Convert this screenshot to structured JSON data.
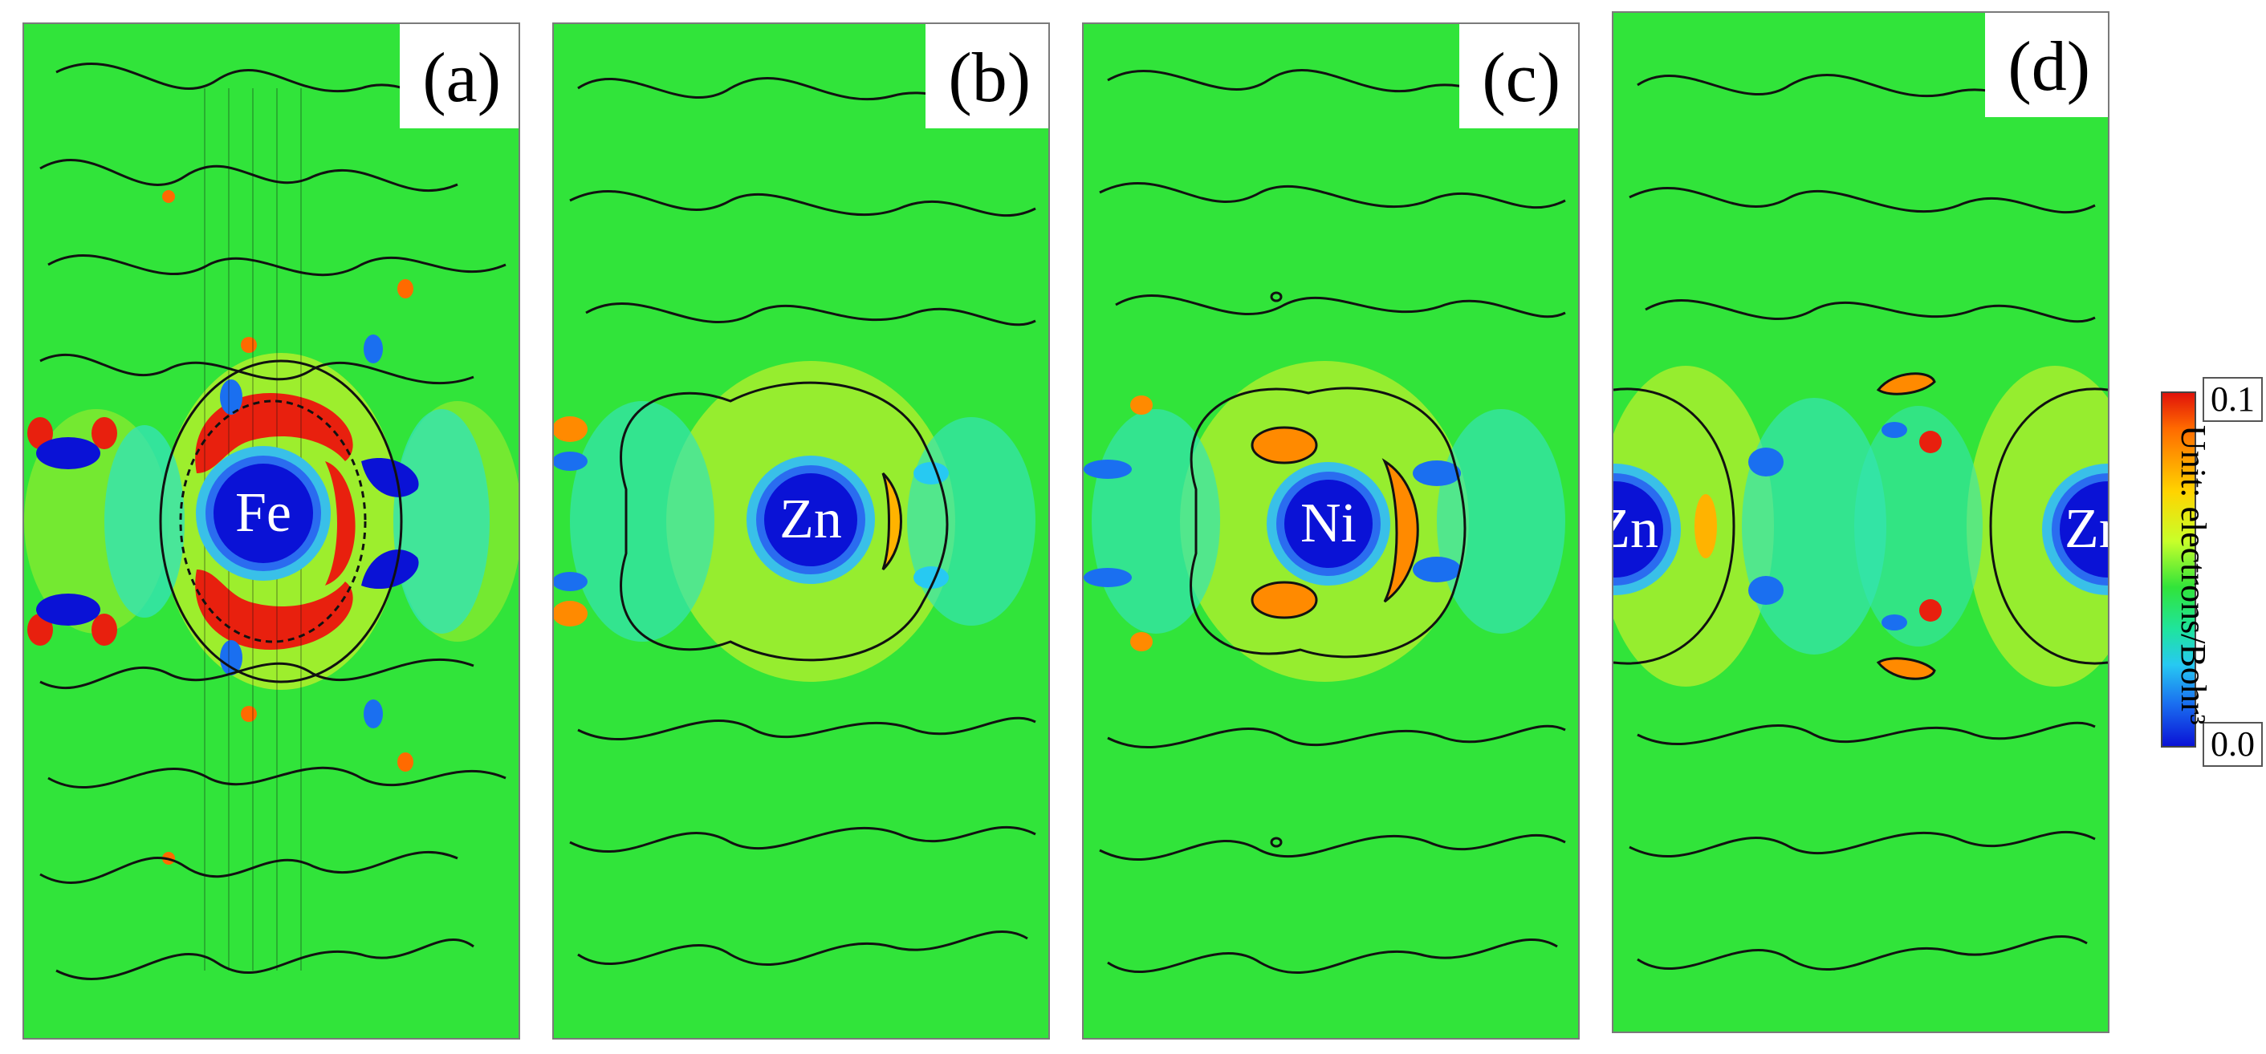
{
  "panels": [
    {
      "tag": "(a)",
      "atoms": [
        "Fe"
      ]
    },
    {
      "tag": "(b)",
      "atoms": [
        "Zn"
      ]
    },
    {
      "tag": "(c)",
      "atoms": [
        "Ni"
      ]
    },
    {
      "tag": "(d)",
      "atoms": [
        "Zn",
        "Zn"
      ]
    }
  ],
  "colorbar": {
    "max_label": "0.1",
    "min_label": "0.0",
    "title": "Unit: electrons/Bohr³",
    "colors": [
      "#e0120a",
      "#ff6a00",
      "#ffd400",
      "#31e43a",
      "#27c9f2",
      "#0a12d6"
    ]
  },
  "colors": {
    "background": "#31e43a",
    "contour": "#111111"
  }
}
